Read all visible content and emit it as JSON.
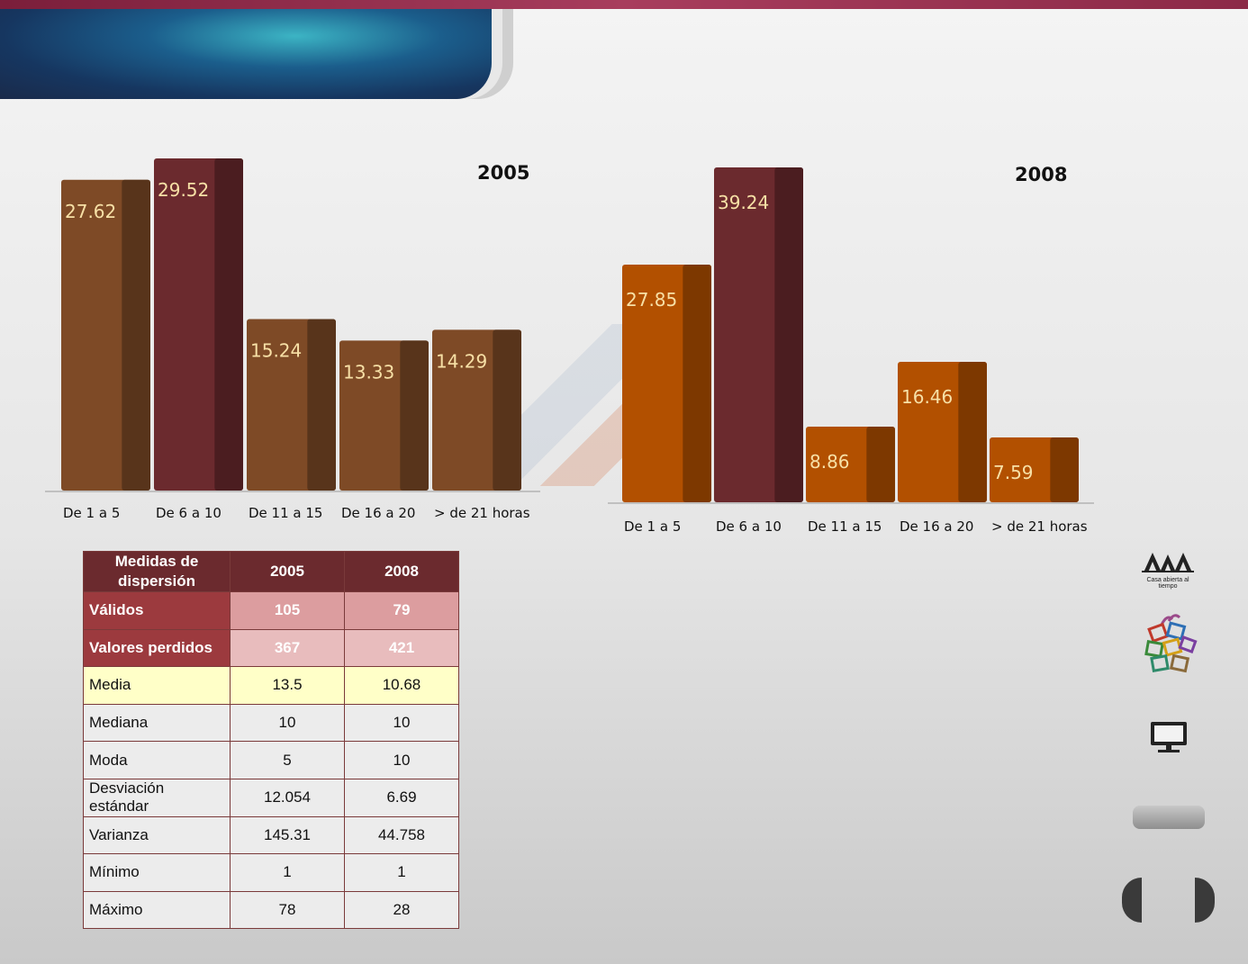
{
  "charts": {
    "chart_2005": {
      "year_label": "2005"
    },
    "chart_2008": {
      "year_label": "2008"
    }
  },
  "chart_data": [
    {
      "type": "bar",
      "title": "2005",
      "categories": [
        "De 1 a 5",
        "De 6 a 10",
        "De 11 a 15",
        "De 16 a 20",
        "> de 21 horas"
      ],
      "values": [
        27.62,
        29.52,
        15.24,
        13.33,
        14.29
      ],
      "value_labels": [
        "27.62",
        "29.52",
        "15.24",
        "13.33",
        "14.29"
      ],
      "ylim": [
        0,
        29.52
      ],
      "colors": [
        "#7e4a26",
        "#6b2a2e",
        "#7e4a26",
        "#7e4a26",
        "#7e4a26"
      ],
      "label_color": "#f7e0a6",
      "grid": false,
      "legend": "none"
    },
    {
      "type": "bar",
      "title": "2008",
      "categories": [
        "De 1 a 5",
        "De 6 a 10",
        "De 11 a 15",
        "De 16 a 20",
        "> de 21 horas"
      ],
      "values": [
        27.85,
        39.24,
        8.86,
        16.46,
        7.59
      ],
      "value_labels": [
        "27.85",
        "39.24",
        "8.86",
        "16.46",
        "7.59"
      ],
      "ylim": [
        0,
        39.24
      ],
      "colors": [
        "#b25000",
        "#6b2a2e",
        "#b25000",
        "#b25000",
        "#b25000"
      ],
      "label_color": "#f7e0a6",
      "grid": false,
      "legend": "none"
    },
    {
      "type": "table",
      "header": {
        "label": "Medidas  de dispersión",
        "col1": "2005",
        "col2": "2008"
      },
      "rows": [
        {
          "label": "Válidos",
          "v1": "105",
          "v2": "79"
        },
        {
          "label": "Valores perdidos",
          "v1": "367",
          "v2": "421"
        },
        {
          "label": "Media",
          "v1": "13.5",
          "v2": "10.68"
        },
        {
          "label": "Mediana",
          "v1": "10",
          "v2": "10"
        },
        {
          "label": "Moda",
          "v1": "5",
          "v2": "10"
        },
        {
          "label": "Desviación estándar",
          "v1": "12.054",
          "v2": "6.69"
        },
        {
          "label": "Varianza",
          "v1": "145.31",
          "v2": "44.758"
        },
        {
          "label": "Mínimo",
          "v1": "1",
          "v2": "1"
        },
        {
          "label": "Máximo",
          "v1": "78",
          "v2": "28"
        }
      ]
    }
  ],
  "sidebar": {
    "logo_text": "UAM",
    "tagline": "Casa abierta al tiempo",
    "icons": [
      "uam-logo-icon",
      "colored-squares-logo-icon",
      "monitor-icon"
    ]
  },
  "theme": {
    "accent": "#6b2a2e",
    "header_blue": "#1b5e8c"
  }
}
